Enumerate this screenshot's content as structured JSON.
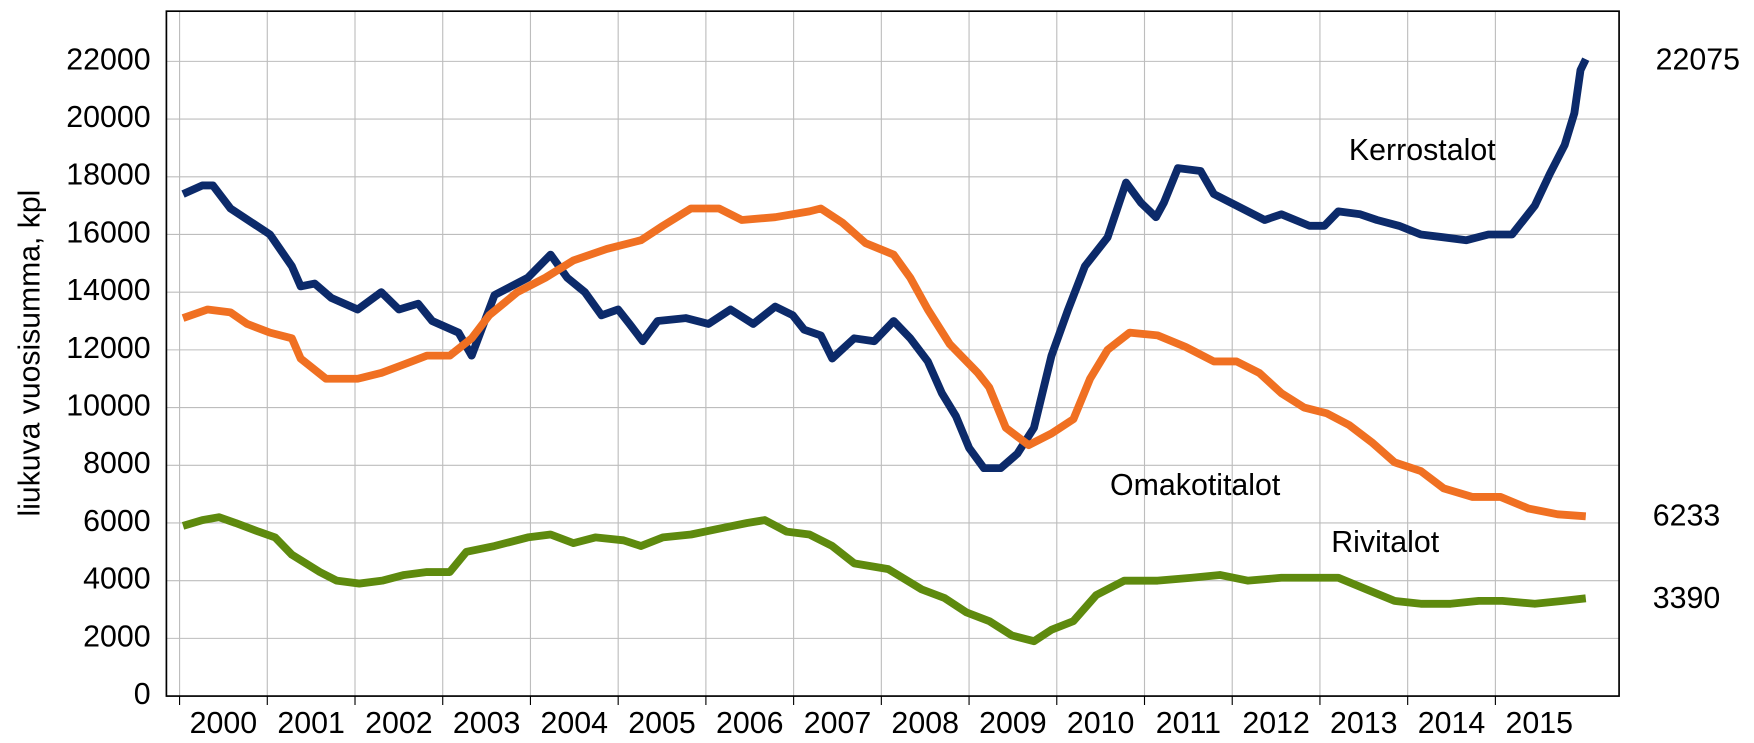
{
  "chart_data": {
    "type": "line",
    "ylabel": "liukuva vuosisumma, kpl",
    "xlim": [
      1999.85,
      2016.41
    ],
    "xticks": [
      2000,
      2001,
      2002,
      2003,
      2004,
      2005,
      2006,
      2007,
      2008,
      2009,
      2010,
      2011,
      2012,
      2013,
      2014,
      2015
    ],
    "ylim": [
      0,
      23740
    ],
    "yticks": [
      0,
      2000,
      4000,
      6000,
      8000,
      10000,
      12000,
      14000,
      16000,
      18000,
      20000,
      22000
    ],
    "grid": true,
    "series": [
      {
        "name": "Kerrostalot",
        "color": "#0c2a6a",
        "x": [
          2000.04,
          2000.26,
          2000.38,
          2000.58,
          2001.03,
          2001.28,
          2001.38,
          2001.54,
          2001.73,
          2002.03,
          2002.3,
          2002.5,
          2002.72,
          2002.88,
          2003.18,
          2003.33,
          2003.59,
          2003.97,
          2004.23,
          2004.42,
          2004.62,
          2004.81,
          2005.0,
          2005.13,
          2005.28,
          2005.45,
          2005.77,
          2006.03,
          2006.28,
          2006.54,
          2006.79,
          2006.99,
          2007.12,
          2007.31,
          2007.44,
          2007.69,
          2007.92,
          2008.14,
          2008.33,
          2008.53,
          2008.69,
          2008.85,
          2009.0,
          2009.17,
          2009.36,
          2009.55,
          2009.74,
          2009.94,
          2010.13,
          2010.32,
          2010.58,
          2010.79,
          2010.96,
          2011.13,
          2011.22,
          2011.38,
          2011.64,
          2011.79,
          2012.05,
          2012.37,
          2012.56,
          2012.88,
          2013.05,
          2013.21,
          2013.46,
          2013.65,
          2013.9,
          2014.15,
          2014.41,
          2014.67,
          2014.92,
          2015.19,
          2015.45,
          2015.62,
          2015.79,
          2015.9,
          2015.97,
          2016.03
        ],
        "values": [
          17400,
          17700,
          17700,
          16900,
          16000,
          14900,
          14200,
          14300,
          13800,
          13400,
          14000,
          13400,
          13600,
          13000,
          12600,
          11800,
          13900,
          14500,
          15300,
          14500,
          14000,
          13200,
          13400,
          12900,
          12300,
          13000,
          13100,
          12900,
          13400,
          12900,
          13500,
          13200,
          12700,
          12500,
          11700,
          12400,
          12300,
          13000,
          12400,
          11600,
          10500,
          9700,
          8600,
          7900,
          7900,
          8400,
          9300,
          11800,
          13400,
          14900,
          15900,
          17800,
          17100,
          16600,
          17100,
          18300,
          18200,
          17400,
          17000,
          16500,
          16700,
          16300,
          16300,
          16800,
          16700,
          16500,
          16300,
          16000,
          15900,
          15800,
          16000,
          16000,
          17000,
          18100,
          19100,
          20200,
          21700,
          22075
        ]
      },
      {
        "name": "Omakotitalot",
        "color": "#f07022",
        "x": [
          2000.04,
          2000.32,
          2000.58,
          2000.77,
          2001.03,
          2001.28,
          2001.38,
          2001.67,
          2002.03,
          2002.3,
          2002.56,
          2002.82,
          2003.08,
          2003.33,
          2003.53,
          2003.85,
          2004.17,
          2004.49,
          2004.87,
          2005.26,
          2005.51,
          2005.83,
          2006.15,
          2006.41,
          2006.79,
          2007.18,
          2007.31,
          2007.56,
          2007.82,
          2008.14,
          2008.33,
          2008.53,
          2008.78,
          2009.1,
          2009.23,
          2009.42,
          2009.68,
          2009.94,
          2010.19,
          2010.38,
          2010.58,
          2010.83,
          2011.15,
          2011.47,
          2011.79,
          2012.05,
          2012.31,
          2012.56,
          2012.82,
          2013.08,
          2013.33,
          2013.59,
          2013.85,
          2014.15,
          2014.41,
          2014.74,
          2015.06,
          2015.38,
          2015.71,
          2016.03
        ],
        "values": [
          13100,
          13400,
          13300,
          12900,
          12600,
          12400,
          11700,
          11000,
          11000,
          11200,
          11500,
          11800,
          11800,
          12400,
          13200,
          14000,
          14500,
          15100,
          15500,
          15800,
          16300,
          16900,
          16900,
          16500,
          16600,
          16800,
          16900,
          16400,
          15700,
          15300,
          14500,
          13400,
          12200,
          11200,
          10700,
          9300,
          8700,
          9100,
          9600,
          11000,
          12000,
          12600,
          12500,
          12100,
          11600,
          11600,
          11200,
          10500,
          10000,
          9800,
          9400,
          8800,
          8100,
          7800,
          7200,
          6900,
          6900,
          6500,
          6300,
          6233
        ]
      },
      {
        "name": "Rivitalot",
        "color": "#5e8a0e",
        "x": [
          2000.04,
          2000.26,
          2000.45,
          2000.64,
          2000.9,
          2001.09,
          2001.28,
          2001.6,
          2001.79,
          2002.05,
          2002.31,
          2002.56,
          2002.82,
          2003.08,
          2003.27,
          2003.59,
          2003.97,
          2004.23,
          2004.49,
          2004.74,
          2005.06,
          2005.26,
          2005.51,
          2005.83,
          2006.15,
          2006.47,
          2006.67,
          2006.92,
          2007.18,
          2007.44,
          2007.69,
          2008.08,
          2008.46,
          2008.72,
          2008.97,
          2009.23,
          2009.49,
          2009.74,
          2009.94,
          2010.19,
          2010.45,
          2010.77,
          2011.15,
          2011.54,
          2011.86,
          2012.18,
          2012.56,
          2012.88,
          2013.21,
          2013.53,
          2013.85,
          2014.15,
          2014.49,
          2014.81,
          2015.08,
          2015.45,
          2015.77,
          2016.03
        ],
        "values": [
          5900,
          6100,
          6200,
          6000,
          5700,
          5500,
          4900,
          4300,
          4000,
          3900,
          4000,
          4200,
          4300,
          4300,
          5000,
          5200,
          5500,
          5600,
          5300,
          5500,
          5400,
          5200,
          5500,
          5600,
          5800,
          6000,
          6100,
          5700,
          5600,
          5200,
          4600,
          4400,
          3700,
          3400,
          2900,
          2600,
          2100,
          1900,
          2300,
          2600,
          3500,
          4000,
          4000,
          4100,
          4200,
          4000,
          4100,
          4100,
          4100,
          3700,
          3300,
          3200,
          3200,
          3300,
          3300,
          3200,
          3300,
          3390
        ]
      }
    ]
  }
}
